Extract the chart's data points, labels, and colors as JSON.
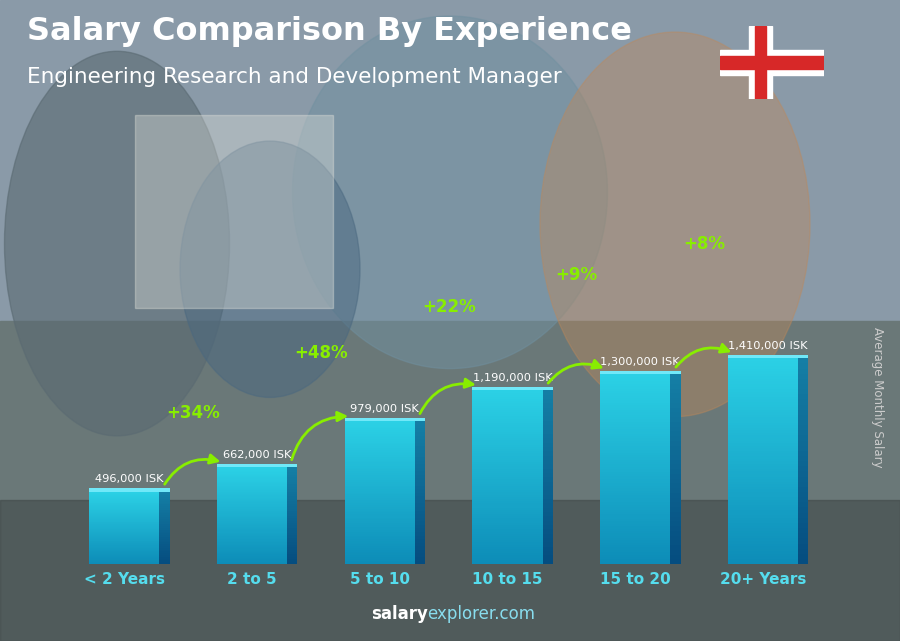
{
  "categories": [
    "< 2 Years",
    "2 to 5",
    "5 to 10",
    "10 to 15",
    "15 to 20",
    "20+ Years"
  ],
  "values": [
    496000,
    662000,
    979000,
    1190000,
    1300000,
    1410000
  ],
  "salary_labels": [
    "496,000 ISK",
    "662,000 ISK",
    "979,000 ISK",
    "1,190,000 ISK",
    "1,300,000 ISK",
    "1,410,000 ISK"
  ],
  "pct_labels": [
    "+34%",
    "+48%",
    "+22%",
    "+9%",
    "+8%"
  ],
  "title_line1": "Salary Comparison By Experience",
  "title_line2": "Engineering Research and Development Manager",
  "ylabel": "Average Monthly Salary",
  "footer_bold": "salary",
  "footer_normal": "explorer.com",
  "bar_face_top": "#29d0e8",
  "bar_face_bottom": "#1090b8",
  "bar_side_top": "#1a8fb0",
  "bar_side_bottom": "#0a5070",
  "bar_top_color": "#60e0f0",
  "bg_color": "#7a8a95",
  "arrow_color": "#88ee00",
  "pct_color": "#88ee00",
  "salary_label_color": "#ffffff",
  "title_color": "#ffffff",
  "subtitle_color": "#ffffff",
  "xtick_color": "#55ddee",
  "ylabel_color": "#cccccc",
  "footer_color": "#aaddee",
  "footer_bold_color": "#ffffff"
}
